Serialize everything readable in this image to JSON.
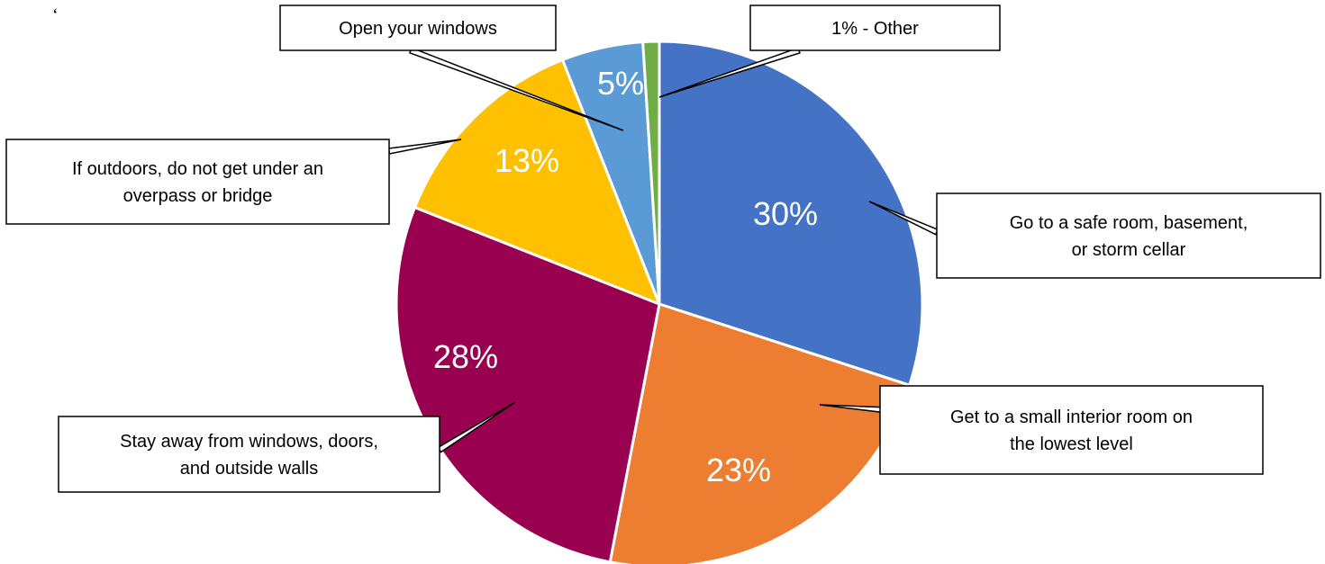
{
  "stray_mark": "‘",
  "chart_data": {
    "type": "pie",
    "title": "",
    "start_angle_deg": 0,
    "direction": "clockwise",
    "slices": [
      {
        "label": "Go to a safe room, basement, or storm cellar",
        "callout_lines": [
          "Go to a safe room, basement,",
          "or storm cellar"
        ],
        "value": 30,
        "value_label": "30%",
        "color": "#4472C4"
      },
      {
        "label": "Get to a small interior room on the lowest level",
        "callout_lines": [
          "Get to a small interior room on",
          "the lowest level"
        ],
        "value": 23,
        "value_label": "23%",
        "color": "#ED7D31"
      },
      {
        "label": "Stay away from windows, doors, and outside walls",
        "callout_lines": [
          "Stay away from windows, doors,",
          "and outside walls"
        ],
        "value": 28,
        "value_label": "28%",
        "color": "#990050"
      },
      {
        "label": "If outdoors, do not get under an overpass or bridge",
        "callout_lines": [
          "If outdoors, do not get under an",
          "overpass or bridge"
        ],
        "value": 13,
        "value_label": "13%",
        "color": "#FFC000"
      },
      {
        "label": "Open your windows",
        "callout_lines": [
          "Open your windows"
        ],
        "value": 5,
        "value_label": "5%",
        "color": "#5B9BD5"
      },
      {
        "label": "Other",
        "callout_lines": [
          "1% - Other"
        ],
        "value": 1,
        "value_label": "",
        "color": "#70AD47"
      }
    ]
  }
}
